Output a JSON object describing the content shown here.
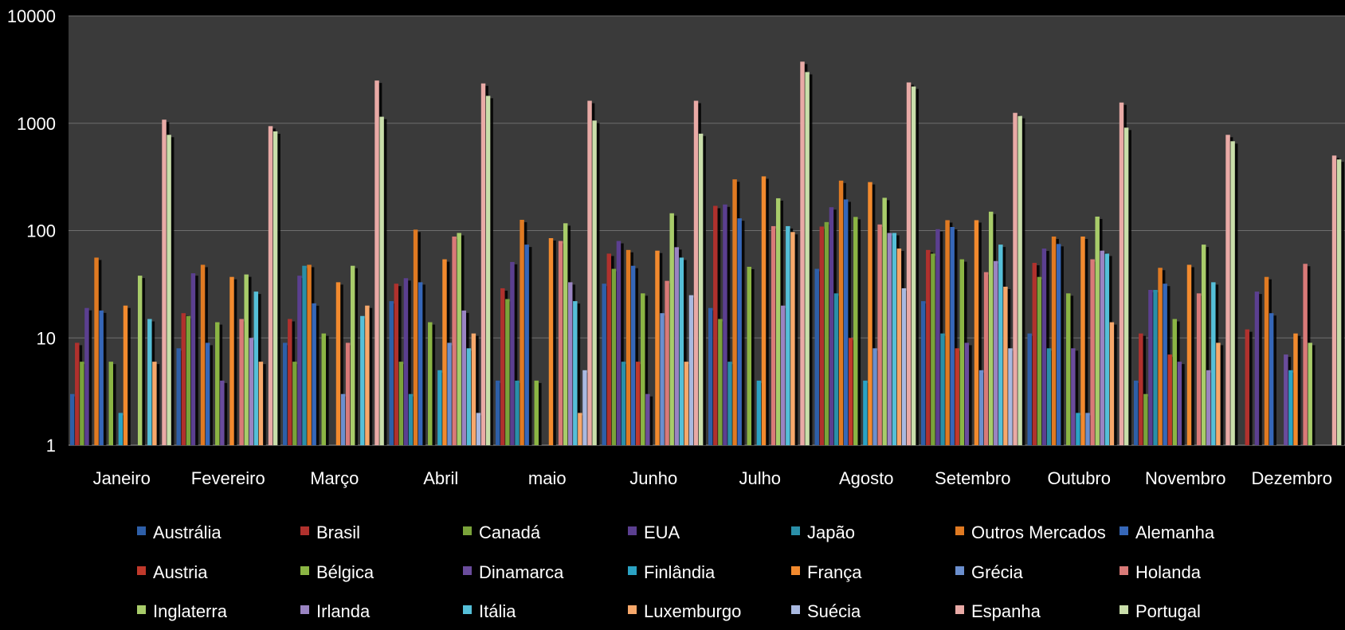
{
  "chart_data": {
    "type": "bar",
    "scale": "log",
    "ylim": [
      1,
      10000
    ],
    "yticks": [
      "1",
      "10",
      "100",
      "1000",
      "10000"
    ],
    "grid": true,
    "legend_position": "bottom",
    "colors": {
      "background": "#000000",
      "plot_area": "#3a3a3a",
      "gridline": "#6e6e6e",
      "text": "#ffffff"
    },
    "categories": [
      "Janeiro",
      "Fevereiro",
      "Março",
      "Abril",
      "maio",
      "Junho",
      "Julho",
      "Agosto",
      "Setembro",
      "Outubro",
      "Novembro",
      "Dezembro"
    ],
    "series": [
      {
        "name": "Austrália",
        "color": "#2e5fa8",
        "values": [
          3,
          8,
          9,
          22,
          4,
          32,
          19,
          44,
          22,
          11,
          4,
          1
        ]
      },
      {
        "name": "Brasil",
        "color": "#b0312d",
        "values": [
          9,
          17,
          15,
          32,
          29,
          61,
          170,
          109,
          66,
          50,
          11,
          12
        ]
      },
      {
        "name": "Canadá",
        "color": "#7aa33a",
        "values": [
          6,
          16,
          6,
          6,
          23,
          44,
          15,
          120,
          61,
          37,
          3,
          1
        ]
      },
      {
        "name": "EUA",
        "color": "#5b3f90",
        "values": [
          19,
          40,
          38,
          36,
          51,
          80,
          175,
          165,
          103,
          68,
          28,
          27
        ]
      },
      {
        "name": "Japão",
        "color": "#2a8fa8",
        "values": [
          1,
          1,
          47,
          3,
          4,
          6,
          6,
          26,
          11,
          8,
          28,
          1
        ]
      },
      {
        "name": "Outros Mercados",
        "color": "#e07a22",
        "values": [
          56,
          48,
          48,
          102,
          126,
          66,
          300,
          292,
          125,
          88,
          45,
          37
        ]
      },
      {
        "name": "Alemanha",
        "color": "#3667b8",
        "values": [
          18,
          9,
          21,
          33,
          74,
          47,
          130,
          195,
          108,
          75,
          32,
          17
        ]
      },
      {
        "name": "Austria",
        "color": "#c0392b",
        "values": [
          1,
          1,
          1,
          1,
          1,
          6,
          1,
          10,
          8,
          1,
          7,
          1
        ]
      },
      {
        "name": "Bélgica",
        "color": "#8bb544",
        "values": [
          6,
          14,
          11,
          14,
          4,
          26,
          46,
          134,
          54,
          26,
          15,
          1
        ]
      },
      {
        "name": "Dinamarca",
        "color": "#6a4c9c",
        "values": [
          1,
          4,
          1,
          1,
          1,
          3,
          1,
          1,
          9,
          8,
          6,
          7
        ]
      },
      {
        "name": "Finlândia",
        "color": "#2ba3c4",
        "values": [
          2,
          1,
          1,
          5,
          1,
          1,
          4,
          4,
          1,
          2,
          1,
          5
        ]
      },
      {
        "name": "França",
        "color": "#f28a2e",
        "values": [
          20,
          37,
          33,
          54,
          85,
          65,
          320,
          283,
          125,
          88,
          48,
          11
        ]
      },
      {
        "name": "Grécia",
        "color": "#6b8fce",
        "values": [
          1,
          1,
          3,
          9,
          1,
          17,
          1,
          8,
          5,
          2,
          1,
          1
        ]
      },
      {
        "name": "Holanda",
        "color": "#d97a78",
        "values": [
          1,
          15,
          9,
          88,
          80,
          34,
          110,
          114,
          41,
          54,
          26,
          49
        ]
      },
      {
        "name": "Inglaterra",
        "color": "#a8cc6a",
        "values": [
          38,
          39,
          47,
          95,
          117,
          145,
          200,
          202,
          150,
          135,
          74,
          9
        ]
      },
      {
        "name": "Irlanda",
        "color": "#9a84c2",
        "values": [
          1,
          10,
          1,
          18,
          33,
          70,
          20,
          95,
          52,
          65,
          5,
          1
        ]
      },
      {
        "name": "Itália",
        "color": "#55bfd8",
        "values": [
          15,
          27,
          16,
          8,
          22,
          56,
          110,
          95,
          74,
          61,
          33,
          1
        ]
      },
      {
        "name": "Luxemburgo",
        "color": "#f7a86b",
        "values": [
          6,
          6,
          20,
          11,
          2,
          6,
          97,
          68,
          30,
          14,
          9,
          1
        ]
      },
      {
        "name": "Suécia",
        "color": "#a9b9e0",
        "values": [
          1,
          1,
          1,
          2,
          5,
          25,
          1,
          29,
          8,
          1,
          1,
          1
        ]
      },
      {
        "name": "Espanha",
        "color": "#e9aaa6",
        "values": [
          1080,
          940,
          2500,
          2350,
          1620,
          1620,
          3750,
          2400,
          1250,
          1560,
          780,
          500
        ]
      },
      {
        "name": "Portugal",
        "color": "#c9deaa",
        "values": [
          780,
          840,
          1150,
          1800,
          1060,
          800,
          3000,
          2200,
          1170,
          910,
          680,
          460
        ]
      }
    ]
  }
}
